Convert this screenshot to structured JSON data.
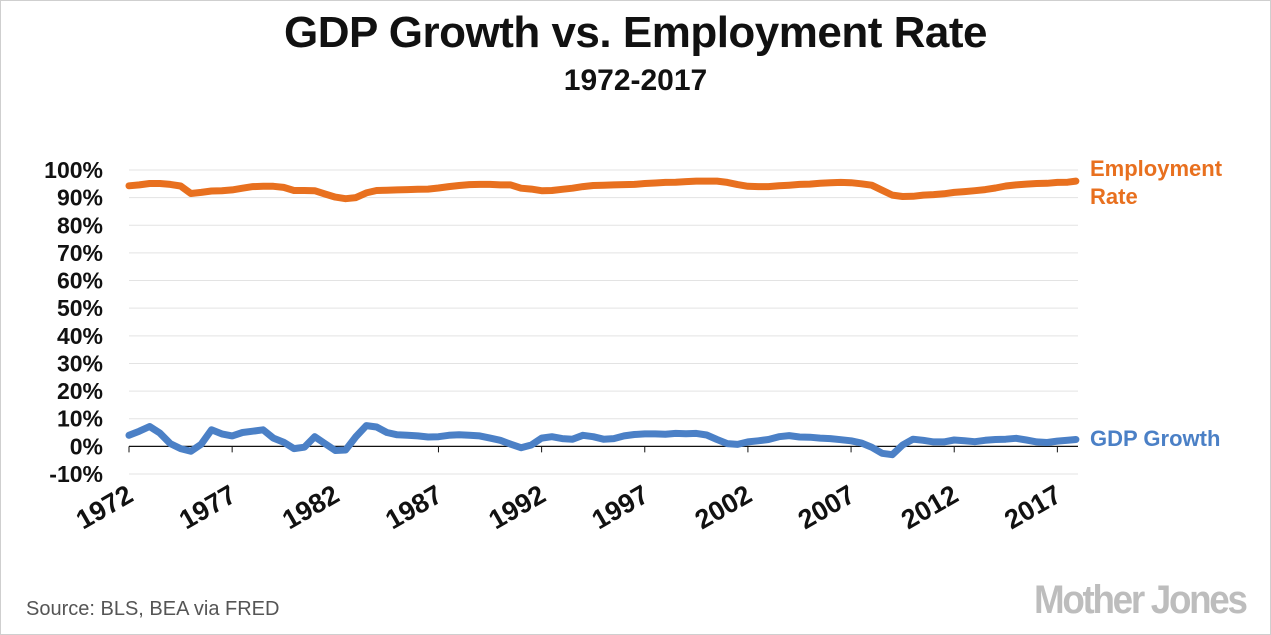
{
  "title": "GDP Growth vs. Employment Rate",
  "subtitle": "1972-2017",
  "source": "Source: BLS, BEA via FRED",
  "logo": "Mother Jones",
  "colors": {
    "employment": "#e8701f",
    "gdp": "#4b80c6",
    "grid": "#e3e3e3",
    "axis": "#111111"
  },
  "chart_data": {
    "type": "line",
    "title": "GDP Growth vs. Employment Rate",
    "subtitle": "1972-2017",
    "xlabel": "",
    "ylabel": "",
    "xlim": [
      1972,
      2018
    ],
    "ylim": [
      -10,
      100
    ],
    "y_ticks": [
      "100%",
      "90%",
      "80%",
      "70%",
      "60%",
      "50%",
      "40%",
      "30%",
      "20%",
      "10%",
      "0%",
      "-10%"
    ],
    "y_tick_values": [
      100,
      90,
      80,
      70,
      60,
      50,
      40,
      30,
      20,
      10,
      0,
      -10
    ],
    "x_ticks": [
      "1972",
      "1977",
      "1982",
      "1987",
      "1992",
      "1997",
      "2002",
      "2007",
      "2012",
      "2017"
    ],
    "x_tick_values": [
      1972,
      1977,
      1982,
      1987,
      1992,
      1997,
      2002,
      2007,
      2012,
      2017
    ],
    "grid": true,
    "legend": "direct labels at right end of each line",
    "series": [
      {
        "name": "Employment Rate",
        "label_lines": [
          "Employment",
          "Rate"
        ],
        "x": [
          1972,
          1972.5,
          1973,
          1973.5,
          1974,
          1974.5,
          1975,
          1975.5,
          1976,
          1976.5,
          1977,
          1977.5,
          1978,
          1978.5,
          1979,
          1979.5,
          1980,
          1980.5,
          1981,
          1981.5,
          1982,
          1982.5,
          1983,
          1983.5,
          1984,
          1984.5,
          1985,
          1985.5,
          1986,
          1986.5,
          1987,
          1987.5,
          1988,
          1988.5,
          1989,
          1989.5,
          1990,
          1990.5,
          1991,
          1991.5,
          1992,
          1992.5,
          1993,
          1993.5,
          1994,
          1994.5,
          1995,
          1995.5,
          1996,
          1996.5,
          1997,
          1997.5,
          1998,
          1998.5,
          1999,
          1999.5,
          2000,
          2000.5,
          2001,
          2001.5,
          2002,
          2002.5,
          2003,
          2003.5,
          2004,
          2004.5,
          2005,
          2005.5,
          2006,
          2006.5,
          2007,
          2007.5,
          2008,
          2008.5,
          2009,
          2009.5,
          2010,
          2010.5,
          2011,
          2011.5,
          2012,
          2012.5,
          2013,
          2013.5,
          2014,
          2014.5,
          2015,
          2015.5,
          2016,
          2016.5,
          2017,
          2017.5,
          2017.9
        ],
        "values": [
          94.3,
          94.6,
          95.1,
          95.1,
          94.8,
          94.2,
          91.5,
          91.9,
          92.4,
          92.5,
          92.8,
          93.4,
          94.0,
          94.1,
          94.1,
          93.7,
          92.6,
          92.6,
          92.5,
          91.3,
          90.2,
          89.6,
          90.0,
          91.7,
          92.6,
          92.7,
          92.8,
          92.9,
          93.0,
          93.1,
          93.5,
          94.0,
          94.4,
          94.7,
          94.8,
          94.8,
          94.6,
          94.6,
          93.4,
          93.1,
          92.5,
          92.6,
          93.0,
          93.4,
          94.0,
          94.4,
          94.5,
          94.6,
          94.7,
          94.8,
          95.1,
          95.3,
          95.5,
          95.6,
          95.8,
          96.0,
          96.0,
          96.0,
          95.5,
          94.7,
          94.1,
          94.0,
          94.0,
          94.3,
          94.5,
          94.8,
          94.9,
          95.2,
          95.4,
          95.5,
          95.4,
          95.0,
          94.5,
          92.7,
          90.9,
          90.4,
          90.5,
          90.9,
          91.1,
          91.4,
          91.9,
          92.2,
          92.5,
          92.9,
          93.5,
          94.2,
          94.6,
          94.9,
          95.1,
          95.2,
          95.5,
          95.6,
          96.0
        ]
      },
      {
        "name": "GDP Growth",
        "label_lines": [
          "GDP Growth"
        ],
        "x": [
          1972,
          1972.5,
          1973,
          1973.5,
          1974,
          1974.5,
          1975,
          1975.5,
          1976,
          1976.5,
          1977,
          1977.5,
          1978,
          1978.5,
          1979,
          1979.5,
          1980,
          1980.5,
          1981,
          1981.5,
          1982,
          1982.5,
          1983,
          1983.5,
          1984,
          1984.5,
          1985,
          1985.5,
          1986,
          1986.5,
          1987,
          1987.5,
          1988,
          1988.5,
          1989,
          1989.5,
          1990,
          1990.5,
          1991,
          1991.5,
          1992,
          1992.5,
          1993,
          1993.5,
          1994,
          1994.5,
          1995,
          1995.5,
          1996,
          1996.5,
          1997,
          1997.5,
          1998,
          1998.5,
          1999,
          1999.5,
          2000,
          2000.5,
          2001,
          2001.5,
          2002,
          2002.5,
          2003,
          2003.5,
          2004,
          2004.5,
          2005,
          2005.5,
          2006,
          2006.5,
          2007,
          2007.5,
          2008,
          2008.5,
          2009,
          2009.5,
          2010,
          2010.5,
          2011,
          2011.5,
          2012,
          2012.5,
          2013,
          2013.5,
          2014,
          2014.5,
          2015,
          2015.5,
          2016,
          2016.5,
          2017,
          2017.5,
          2017.9
        ],
        "values": [
          4.0,
          5.5,
          7.2,
          4.8,
          1.0,
          -0.8,
          -1.8,
          0.8,
          6.0,
          4.5,
          3.8,
          5.0,
          5.5,
          6.0,
          3.0,
          1.5,
          -0.8,
          -0.3,
          3.5,
          1.0,
          -1.5,
          -1.3,
          3.5,
          7.5,
          7.0,
          5.0,
          4.2,
          4.0,
          3.8,
          3.4,
          3.5,
          4.0,
          4.2,
          4.0,
          3.8,
          3.0,
          2.2,
          0.8,
          -0.5,
          0.5,
          3.0,
          3.5,
          2.8,
          2.6,
          4.0,
          3.5,
          2.6,
          2.8,
          3.8,
          4.3,
          4.5,
          4.5,
          4.4,
          4.7,
          4.6,
          4.7,
          4.1,
          2.5,
          1.0,
          0.7,
          1.6,
          2.0,
          2.5,
          3.5,
          3.9,
          3.4,
          3.3,
          3.0,
          2.8,
          2.4,
          2.0,
          1.2,
          -0.3,
          -2.5,
          -3.0,
          0.5,
          2.6,
          2.2,
          1.6,
          1.6,
          2.3,
          2.0,
          1.7,
          2.2,
          2.5,
          2.6,
          2.9,
          2.3,
          1.6,
          1.4,
          1.9,
          2.2,
          2.5
        ]
      }
    ]
  }
}
